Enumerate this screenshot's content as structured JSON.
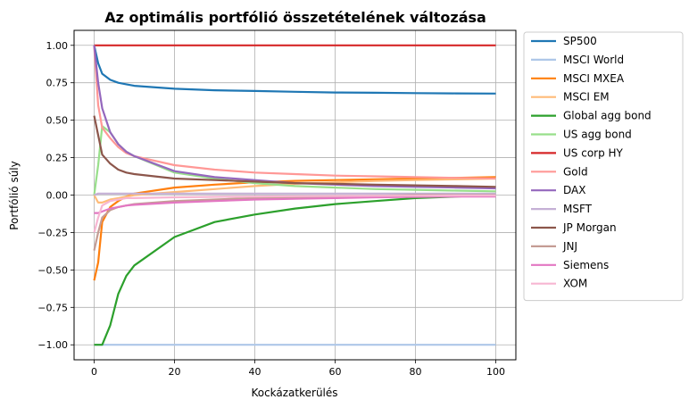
{
  "chart_data": {
    "type": "line",
    "title": "Az optimális portfólió összetételének változása",
    "xlabel": "Kockázatkerülés",
    "ylabel": "Portfólió súly",
    "xlim": [
      -5,
      105
    ],
    "ylim": [
      -1.1,
      1.1
    ],
    "xticks": [
      0,
      20,
      40,
      60,
      80,
      100
    ],
    "xtick_labels": [
      "0",
      "20",
      "40",
      "60",
      "80",
      "100"
    ],
    "yticks": [
      1.0,
      0.75,
      0.5,
      0.25,
      0.0,
      -0.25,
      -0.5,
      -0.75,
      -1.0
    ],
    "ytick_labels": [
      "1.00",
      "0.75",
      "0.50",
      "0.25",
      "0.00",
      "−0.25",
      "−0.50",
      "−0.75",
      "−1.00"
    ],
    "grid": true,
    "legend_position": "outside-right",
    "x": [
      0,
      1,
      2,
      4,
      6,
      8,
      10,
      20,
      30,
      40,
      50,
      60,
      70,
      80,
      90,
      100
    ],
    "series": [
      {
        "name": "SP500",
        "color": "#1f77b4",
        "values": [
          1.0,
          0.88,
          0.81,
          0.77,
          0.75,
          0.74,
          0.73,
          0.71,
          0.7,
          0.695,
          0.69,
          0.685,
          0.683,
          0.681,
          0.679,
          0.678
        ]
      },
      {
        "name": "MSCI World",
        "color": "#aec7e8",
        "values": [
          -1.0,
          -1.0,
          -1.0,
          -1.0,
          -1.0,
          -1.0,
          -1.0,
          -1.0,
          -1.0,
          -1.0,
          -1.0,
          -1.0,
          -1.0,
          -1.0,
          -1.0,
          -1.0
        ]
      },
      {
        "name": "MSCI MXEA",
        "color": "#ff7f0e",
        "values": [
          -0.57,
          -0.45,
          -0.18,
          -0.08,
          -0.04,
          -0.01,
          0.01,
          0.05,
          0.07,
          0.085,
          0.095,
          0.1,
          0.105,
          0.11,
          0.115,
          0.12
        ]
      },
      {
        "name": "MSCI EM",
        "color": "#ffbb78",
        "values": [
          0.0,
          -0.05,
          -0.05,
          -0.03,
          -0.02,
          -0.01,
          0.0,
          0.02,
          0.04,
          0.06,
          0.075,
          0.085,
          0.095,
          0.1,
          0.105,
          0.11
        ]
      },
      {
        "name": "Global agg bond",
        "color": "#2ca02c",
        "values": [
          -1.0,
          -1.0,
          -1.0,
          -0.87,
          -0.66,
          -0.54,
          -0.47,
          -0.28,
          -0.18,
          -0.13,
          -0.09,
          -0.06,
          -0.04,
          -0.02,
          -0.01,
          0.0
        ]
      },
      {
        "name": "US agg bond",
        "color": "#98df8a",
        "values": [
          0.0,
          0.2,
          0.46,
          0.42,
          0.34,
          0.29,
          0.26,
          0.15,
          0.11,
          0.08,
          0.06,
          0.05,
          0.04,
          0.035,
          0.03,
          0.025
        ]
      },
      {
        "name": "US corp HY",
        "color": "#d62728",
        "values": [
          1.0,
          1.0,
          1.0,
          1.0,
          1.0,
          1.0,
          1.0,
          1.0,
          1.0,
          1.0,
          1.0,
          1.0,
          1.0,
          1.0,
          1.0,
          1.0
        ]
      },
      {
        "name": "Gold",
        "color": "#ff9896",
        "values": [
          1.0,
          0.6,
          0.45,
          0.38,
          0.32,
          0.28,
          0.26,
          0.2,
          0.17,
          0.15,
          0.14,
          0.13,
          0.125,
          0.12,
          0.115,
          0.11
        ]
      },
      {
        "name": "DAX",
        "color": "#9467bd",
        "values": [
          1.0,
          0.75,
          0.58,
          0.42,
          0.34,
          0.29,
          0.26,
          0.16,
          0.12,
          0.1,
          0.08,
          0.07,
          0.06,
          0.055,
          0.05,
          0.045
        ]
      },
      {
        "name": "MSFT",
        "color": "#c5b0d5",
        "values": [
          0.0,
          0.01,
          0.01,
          0.01,
          0.01,
          0.01,
          0.01,
          0.01,
          0.01,
          0.01,
          0.01,
          0.01,
          0.01,
          0.01,
          0.01,
          0.01
        ]
      },
      {
        "name": "JP Morgan",
        "color": "#8c564b",
        "values": [
          0.53,
          0.4,
          0.27,
          0.21,
          0.17,
          0.15,
          0.14,
          0.11,
          0.1,
          0.09,
          0.08,
          0.075,
          0.07,
          0.065,
          0.06,
          0.055
        ]
      },
      {
        "name": "JNJ",
        "color": "#c49c94",
        "values": [
          -0.37,
          -0.25,
          -0.15,
          -0.1,
          -0.08,
          -0.07,
          -0.06,
          -0.04,
          -0.03,
          -0.02,
          -0.015,
          -0.01,
          -0.005,
          0.0,
          0.0,
          0.0
        ]
      },
      {
        "name": "Siemens",
        "color": "#e377c2",
        "values": [
          -0.12,
          -0.12,
          -0.11,
          -0.09,
          -0.08,
          -0.07,
          -0.065,
          -0.05,
          -0.04,
          -0.03,
          -0.025,
          -0.02,
          -0.015,
          -0.012,
          -0.01,
          -0.01
        ]
      },
      {
        "name": "XOM",
        "color": "#f7b6d2",
        "values": [
          -0.25,
          -0.15,
          -0.07,
          -0.04,
          -0.03,
          -0.02,
          -0.02,
          -0.015,
          -0.012,
          -0.01,
          -0.008,
          -0.006,
          -0.005,
          -0.004,
          -0.003,
          -0.003
        ]
      }
    ]
  }
}
